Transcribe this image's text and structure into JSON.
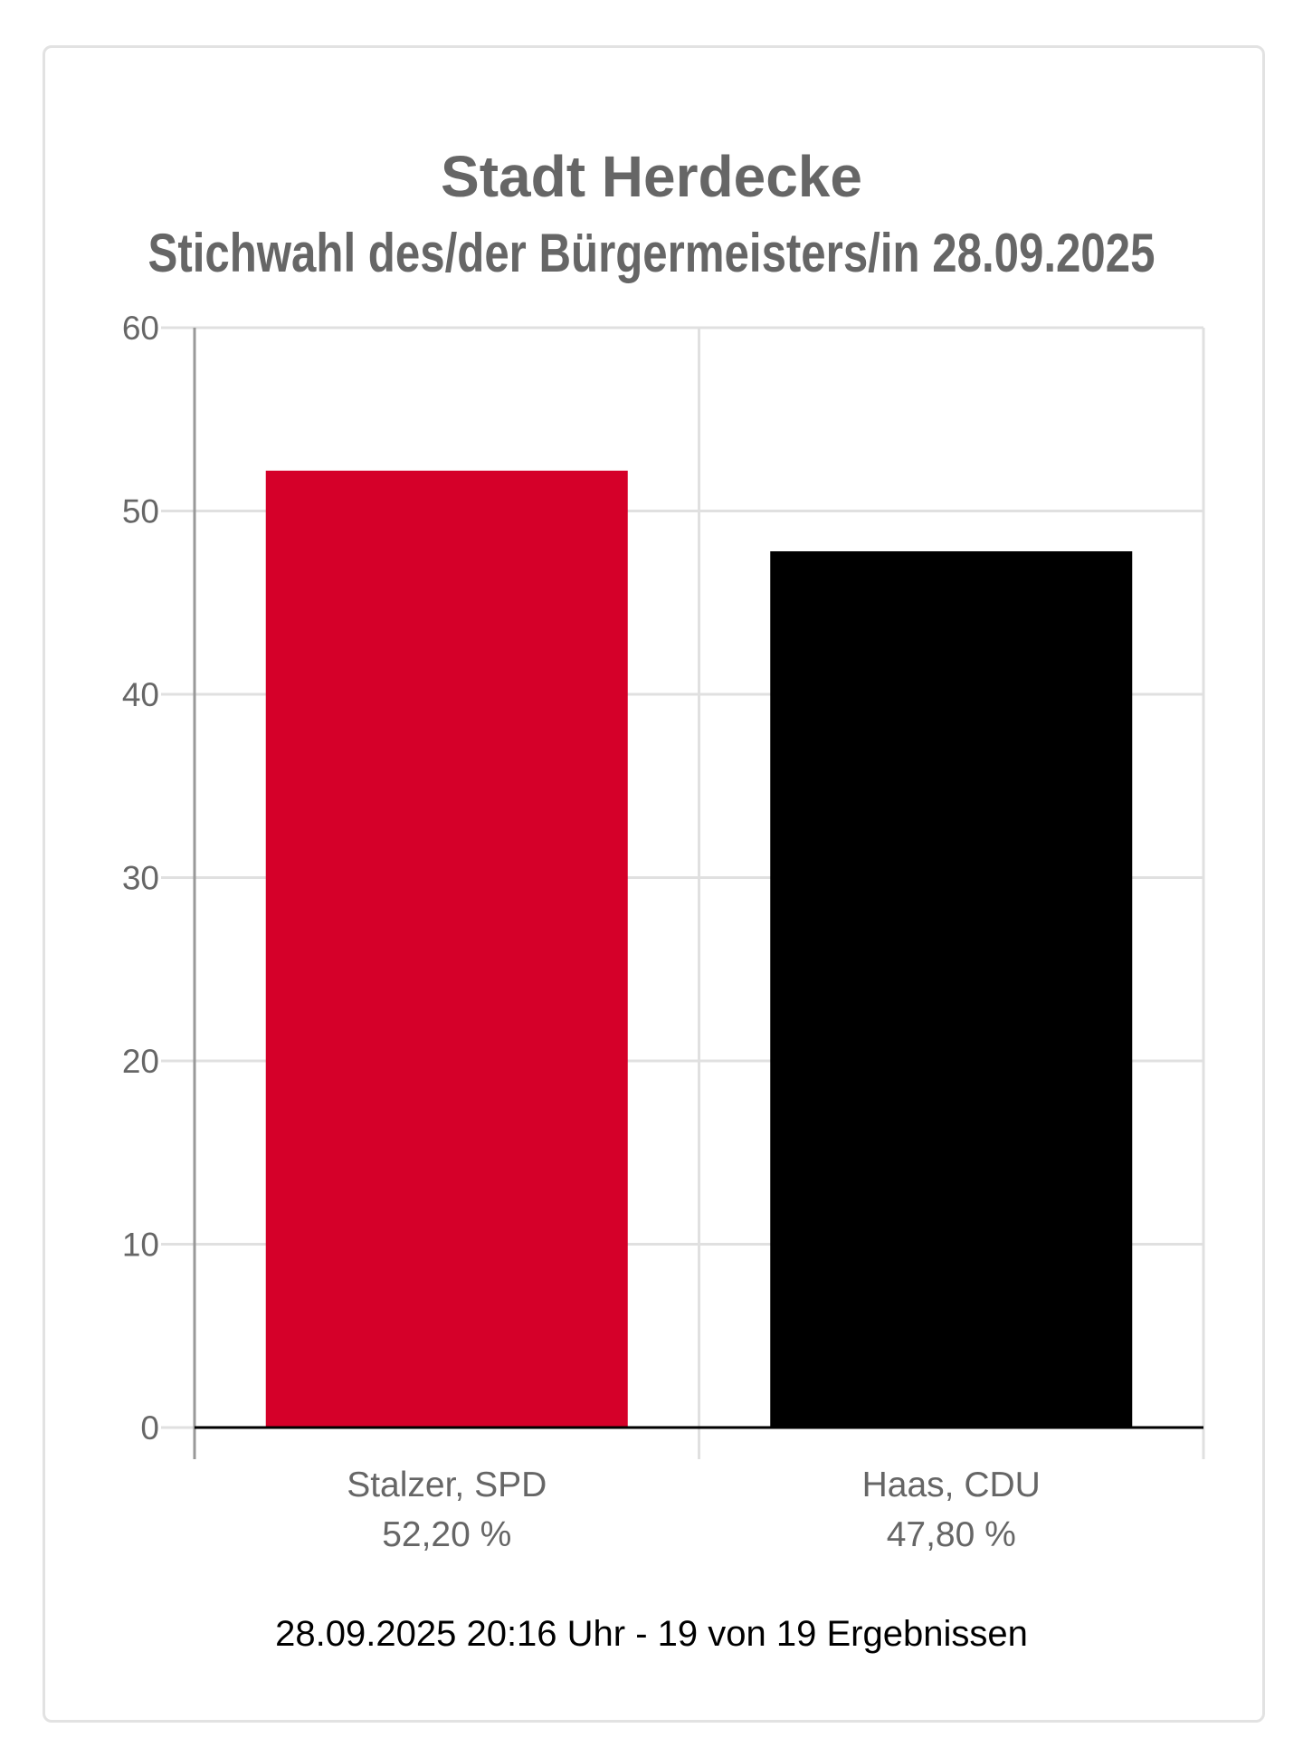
{
  "chart_data": {
    "type": "bar",
    "title": "Stadt Herdecke",
    "subtitle": "Stichwahl des/der Bürgermeisters/in 28.09.2025",
    "categories": [
      "Stalzer, SPD",
      "Haas, CDU"
    ],
    "value_labels": [
      "52,20 %",
      "47,80 %"
    ],
    "values": [
      52.2,
      47.8
    ],
    "colors": [
      "#D50029",
      "#000000"
    ],
    "ylim": [
      0,
      60
    ],
    "yticks": [
      0,
      10,
      20,
      30,
      40,
      50,
      60
    ],
    "grid": true,
    "xlabel": "",
    "ylabel": ""
  },
  "footer": "28.09.2025 20:16 Uhr - 19 von 19 Ergebnissen"
}
